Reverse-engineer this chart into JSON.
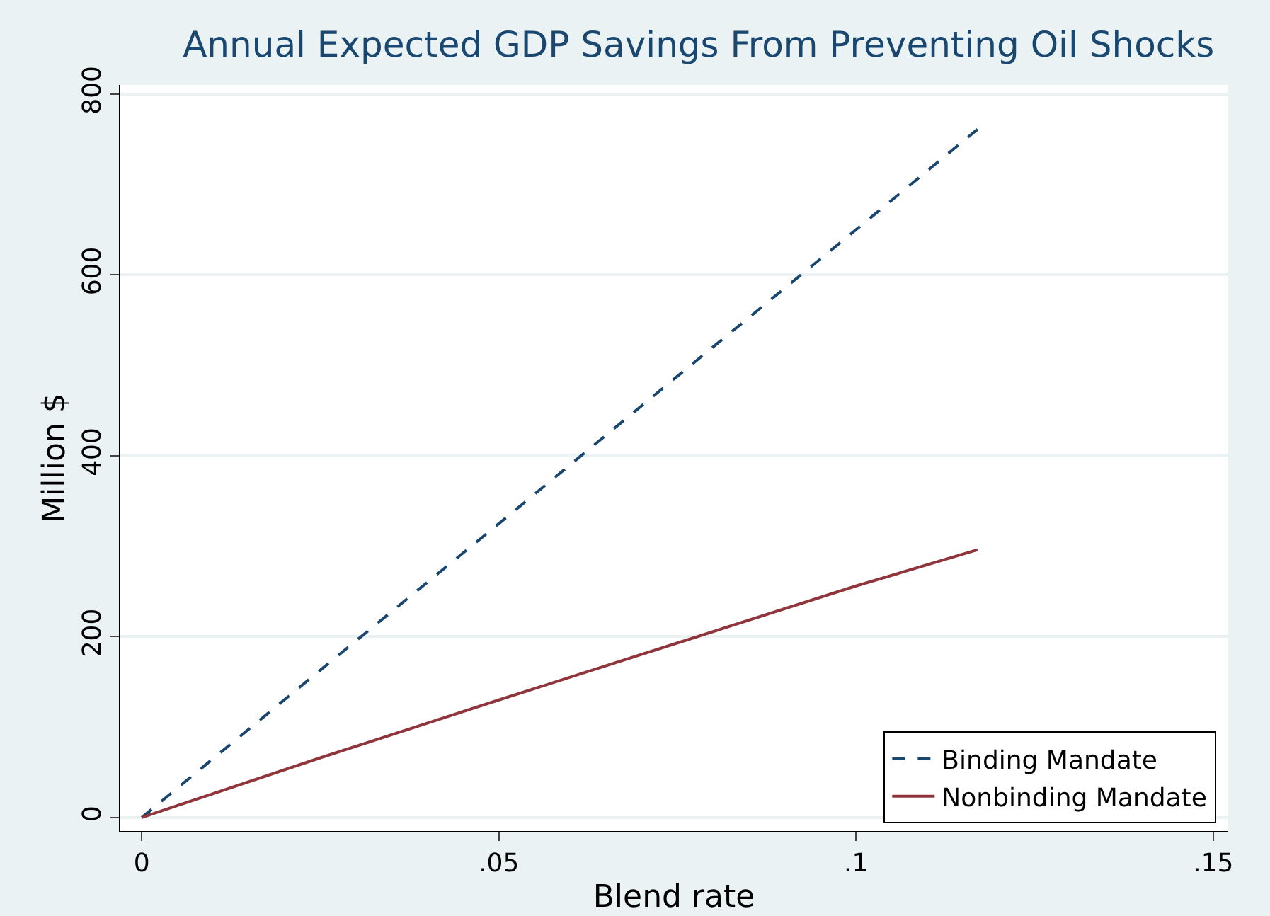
{
  "chart_data": {
    "type": "line",
    "title": "Annual Expected GDP Savings From Preventing Oil Shocks",
    "xlabel": "Blend rate",
    "ylabel": "Million $",
    "x": [
      0,
      0.025,
      0.05,
      0.075,
      0.1,
      0.117
    ],
    "series": [
      {
        "name": "Binding Mandate",
        "color": "#1a476f",
        "line_style": "dashed",
        "values": [
          0,
          163,
          325,
          488,
          650,
          761
        ]
      },
      {
        "name": "Nonbinding Mandate",
        "color": "#90353b",
        "line_style": "solid",
        "values": [
          0,
          66,
          130,
          193,
          256,
          296
        ]
      }
    ],
    "xlim": [
      -0.003,
      0.152
    ],
    "xticks": [
      {
        "value": 0,
        "label": "0"
      },
      {
        "value": 0.05,
        "label": ".05"
      },
      {
        "value": 0.1,
        "label": ".1"
      },
      {
        "value": 0.15,
        "label": ".15"
      }
    ],
    "ylim": [
      -15,
      810
    ],
    "yticks": [
      0,
      200,
      400,
      600,
      800
    ],
    "grid": "y",
    "legend": "bottom right",
    "marker": "none"
  }
}
